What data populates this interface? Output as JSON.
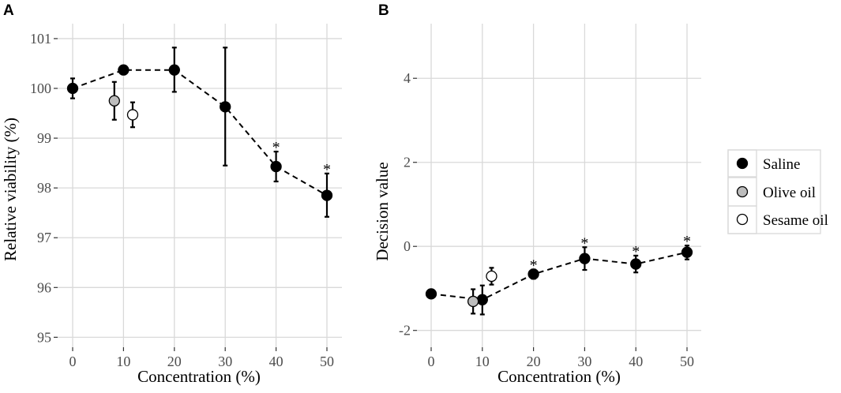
{
  "legend": {
    "entries": [
      {
        "label": "Saline",
        "fill": "#000000"
      },
      {
        "label": "Olive oil",
        "fill": "#bdbdbd"
      },
      {
        "label": "Sesame oil",
        "fill": "#ffffff"
      }
    ]
  },
  "chart_data": [
    {
      "type": "scatter",
      "panel": "A",
      "xlabel": "Concentration (%)",
      "ylabel": "Relative viability (%)",
      "xlim": [
        0,
        50
      ],
      "ylim": [
        94.8,
        101.3
      ],
      "xticks": [
        0,
        10,
        20,
        30,
        40,
        50
      ],
      "yticks": [
        95,
        96,
        97,
        98,
        99,
        100,
        101
      ],
      "grid": true,
      "series": [
        {
          "name": "Saline",
          "fill": "#000000",
          "connected": true,
          "points": [
            {
              "x": 0,
              "y": 100.0,
              "lo": 99.8,
              "hi": 100.2,
              "sig": false
            },
            {
              "x": 10,
              "y": 100.37,
              "lo": 100.37,
              "hi": 100.37,
              "sig": false
            },
            {
              "x": 20,
              "y": 100.37,
              "lo": 99.93,
              "hi": 100.82,
              "sig": false
            },
            {
              "x": 30,
              "y": 99.63,
              "lo": 98.45,
              "hi": 100.82,
              "sig": false
            },
            {
              "x": 40,
              "y": 98.43,
              "lo": 98.13,
              "hi": 98.73,
              "sig": true
            },
            {
              "x": 50,
              "y": 97.85,
              "lo": 97.42,
              "hi": 98.29,
              "sig": true
            }
          ]
        },
        {
          "name": "Olive oil",
          "fill": "#bdbdbd",
          "connected": false,
          "points": [
            {
              "x": 8.2,
              "y": 99.75,
              "lo": 99.37,
              "hi": 100.13,
              "sig": false
            }
          ]
        },
        {
          "name": "Sesame oil",
          "fill": "#ffffff",
          "connected": false,
          "points": [
            {
              "x": 11.8,
              "y": 99.47,
              "lo": 99.22,
              "hi": 99.72,
              "sig": false
            }
          ]
        }
      ]
    },
    {
      "type": "scatter",
      "panel": "B",
      "xlabel": "Concentration (%)",
      "ylabel": "Decision value",
      "xlim": [
        0,
        50
      ],
      "ylim": [
        -2.4,
        5.3
      ],
      "xticks": [
        0,
        10,
        20,
        30,
        40,
        50
      ],
      "yticks": [
        -2,
        0,
        2,
        4
      ],
      "grid": true,
      "series": [
        {
          "name": "Saline",
          "fill": "#000000",
          "connected": true,
          "points": [
            {
              "x": 0,
              "y": -1.13,
              "lo": -1.13,
              "hi": -1.13,
              "sig": false
            },
            {
              "x": 10,
              "y": -1.27,
              "lo": -1.62,
              "hi": -0.93,
              "sig": false
            },
            {
              "x": 20,
              "y": -0.66,
              "lo": -0.77,
              "hi": -0.55,
              "sig": true
            },
            {
              "x": 30,
              "y": -0.29,
              "lo": -0.56,
              "hi": -0.02,
              "sig": true
            },
            {
              "x": 40,
              "y": -0.42,
              "lo": -0.62,
              "hi": -0.22,
              "sig": true
            },
            {
              "x": 50,
              "y": -0.14,
              "lo": -0.31,
              "hi": 0.02,
              "sig": true
            }
          ]
        },
        {
          "name": "Olive oil",
          "fill": "#bdbdbd",
          "connected": false,
          "points": [
            {
              "x": 8.2,
              "y": -1.31,
              "lo": -1.6,
              "hi": -1.02,
              "sig": false
            }
          ]
        },
        {
          "name": "Sesame oil",
          "fill": "#ffffff",
          "connected": false,
          "points": [
            {
              "x": 11.8,
              "y": -0.71,
              "lo": -0.91,
              "hi": -0.51,
              "sig": false
            }
          ]
        }
      ]
    }
  ]
}
